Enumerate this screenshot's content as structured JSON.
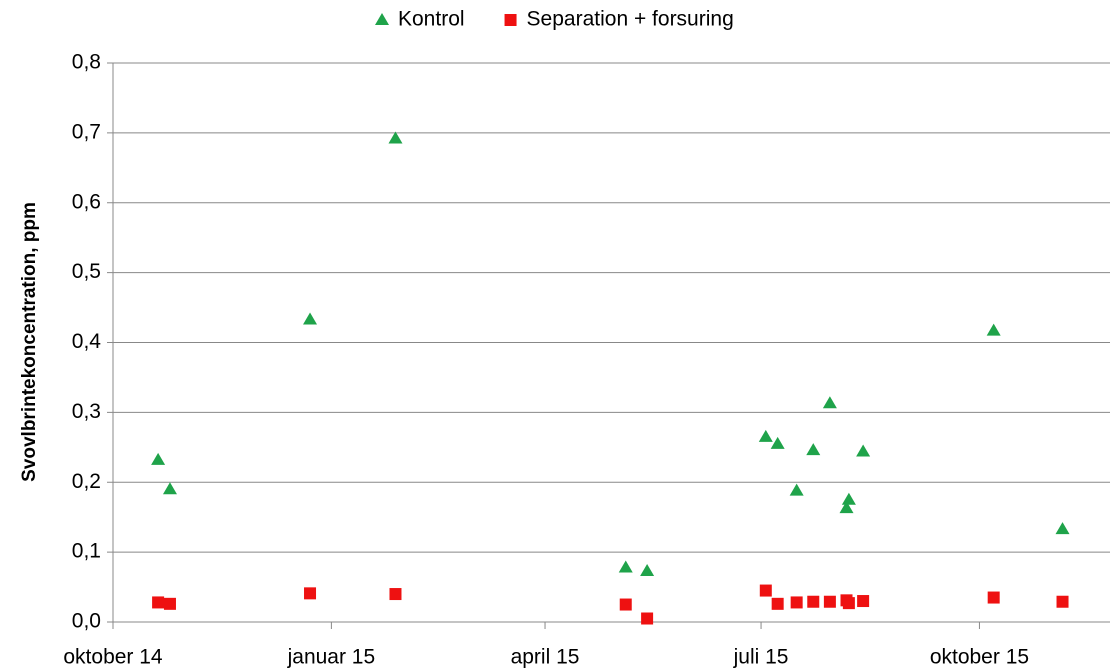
{
  "chart_data": {
    "type": "scatter",
    "y_label": "Svovlbrintekoncentration, ppm",
    "legend": "top",
    "grid": true,
    "ylim": [
      0,
      0.8
    ],
    "yticks": [
      {
        "value": 0,
        "label": "0,0"
      },
      {
        "value": 0.1,
        "label": "0,1"
      },
      {
        "value": 0.2,
        "label": "0,2"
      },
      {
        "value": 0.3,
        "label": "0,3"
      },
      {
        "value": 0.4,
        "label": "0,4"
      },
      {
        "value": 0.5,
        "label": "0,5"
      },
      {
        "value": 0.6,
        "label": "0,6"
      },
      {
        "value": 0.7,
        "label": "0,7"
      },
      {
        "value": 0.8,
        "label": "0,8"
      }
    ],
    "xlim": [
      41913,
      42333
    ],
    "xticks": [
      {
        "value": 41913,
        "label": "oktober 14"
      },
      {
        "value": 42005,
        "label": "januar 15"
      },
      {
        "value": 42095,
        "label": "april 15"
      },
      {
        "value": 42186,
        "label": "juli 15"
      },
      {
        "value": 42278,
        "label": "oktober 15"
      }
    ],
    "series": [
      {
        "name": "Kontrol",
        "color": "#1fa34a",
        "marker": "triangle",
        "x": [
          41932,
          41937,
          41996,
          42032,
          42129,
          42138,
          42188,
          42193,
          42201,
          42208,
          42215,
          42222,
          42223,
          42229,
          42284,
          42313
        ],
        "values": [
          0.232,
          0.19,
          0.433,
          0.692,
          0.078,
          0.073,
          0.265,
          0.255,
          0.188,
          0.246,
          0.313,
          0.163,
          0.175,
          0.244,
          0.417,
          0.133
        ]
      },
      {
        "name": "Separation + forsuring",
        "color": "#ee1111",
        "marker": "square",
        "x": [
          41932,
          41937,
          41996,
          42032,
          42129,
          42138,
          42188,
          42193,
          42201,
          42208,
          42215,
          42222,
          42223,
          42229,
          42284,
          42313
        ],
        "values": [
          0.028,
          0.026,
          0.041,
          0.04,
          0.025,
          0.005,
          0.045,
          0.026,
          0.028,
          0.029,
          0.029,
          0.031,
          0.027,
          0.03,
          0.035,
          0.029
        ]
      }
    ]
  }
}
